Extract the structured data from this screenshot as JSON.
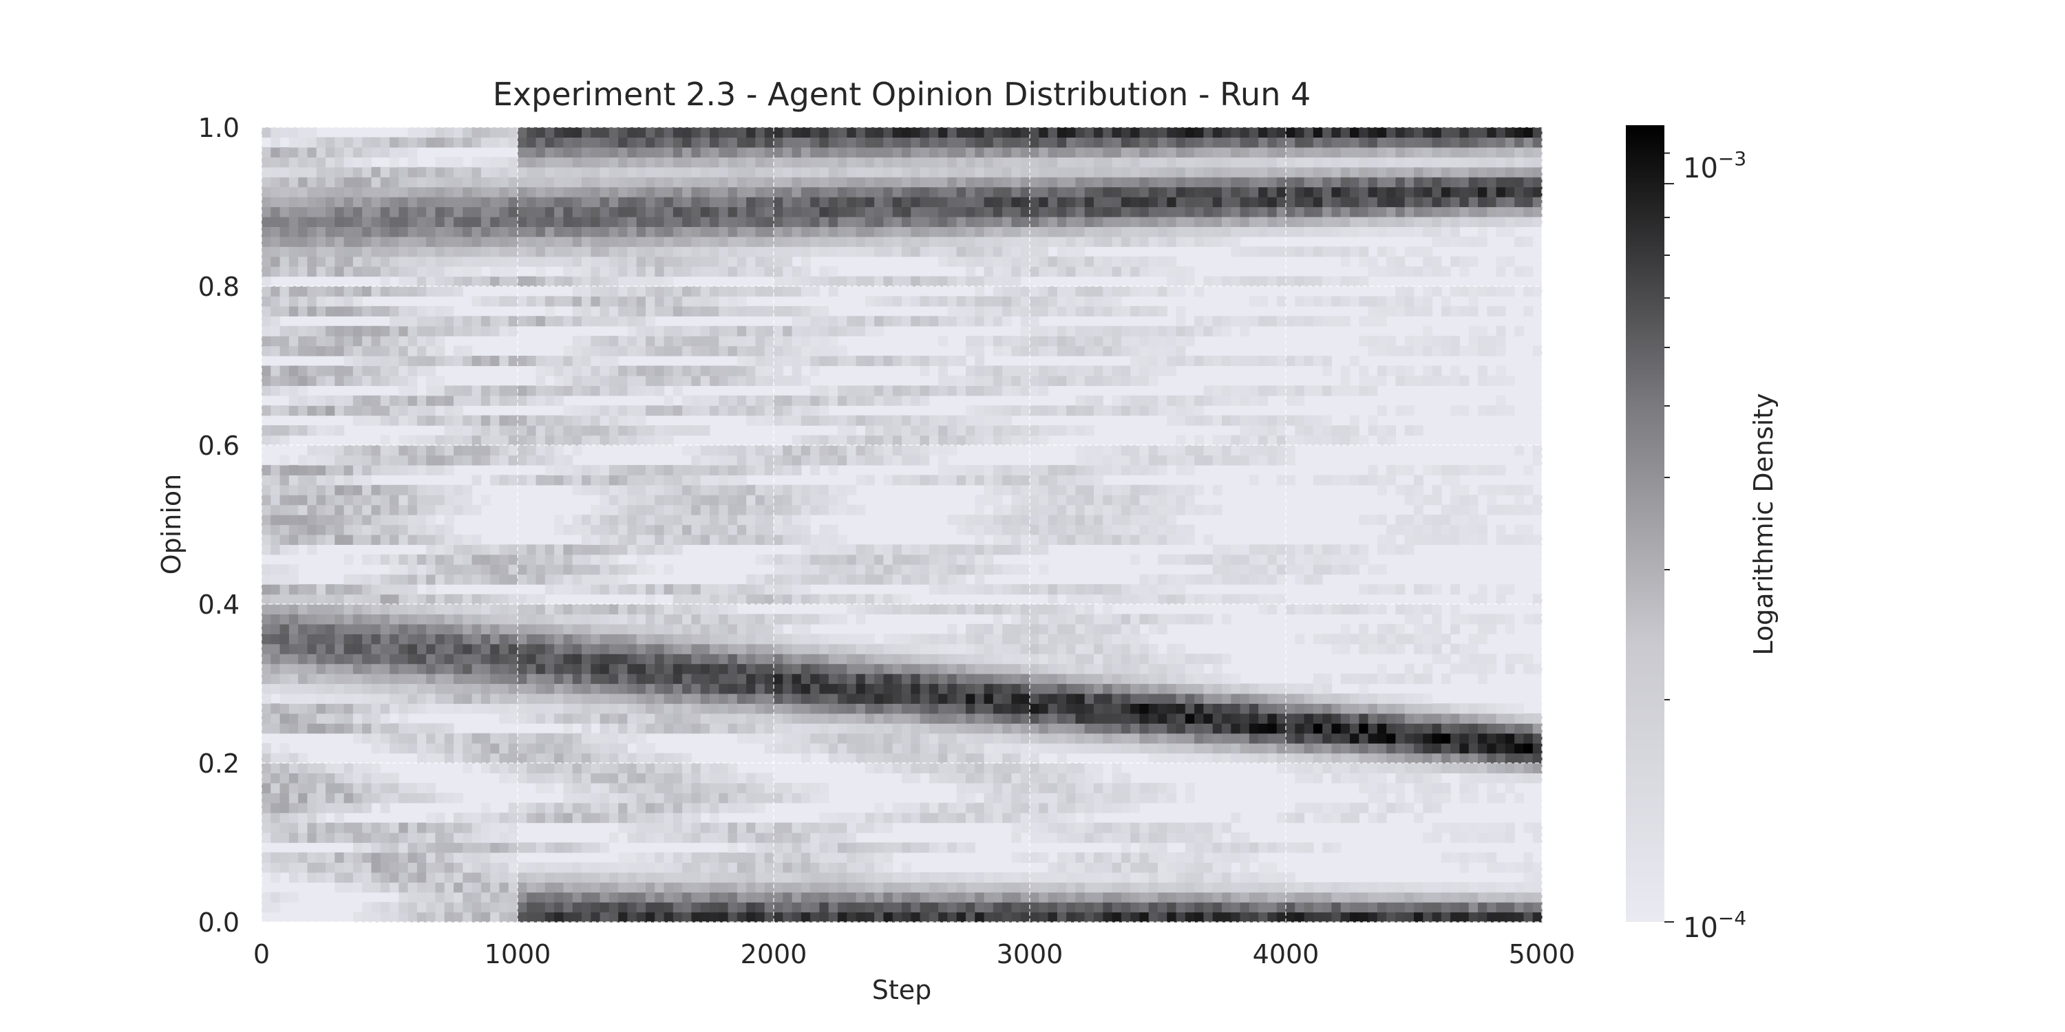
{
  "chart_data": {
    "type": "heatmap",
    "title": "Experiment 2.3 - Agent Opinion Distribution - Run 4",
    "xlabel": "Step",
    "ylabel": "Opinion",
    "xlim": [
      0,
      5000
    ],
    "ylim": [
      0,
      1
    ],
    "x_ticks": [
      0,
      1000,
      2000,
      3000,
      4000,
      5000
    ],
    "y_ticks": [
      0.0,
      0.2,
      0.4,
      0.6,
      0.8,
      1.0
    ],
    "x_tick_labels": [
      "0",
      "1000",
      "2000",
      "3000",
      "4000",
      "5000"
    ],
    "y_tick_labels": [
      "0.0",
      "0.2",
      "0.4",
      "0.6",
      "0.8",
      "1.0"
    ],
    "grid": true,
    "colormap": "greys",
    "colorbar": {
      "label": "Logarithmic Density",
      "scale": "log",
      "min": 0.0001,
      "max": 0.0012,
      "tick_values": [
        0.0001,
        0.001
      ],
      "tick_labels": [
        {
          "base": "10",
          "exponent": "−4"
        },
        {
          "base": "10",
          "exponent": "−3"
        }
      ]
    },
    "density_bands": [
      {
        "y_start": 0.36,
        "y_end": 0.22,
        "t_start": 0,
        "t_end": 5000,
        "peak_end": 0.00115,
        "peak_start": 0.0004
      },
      {
        "y_start": 0.88,
        "y_end": 0.92,
        "t_start": 0,
        "t_end": 5000,
        "peak_end": 0.0008,
        "peak_start": 0.0003
      },
      {
        "y_start": 0.0,
        "y_end": 0.0,
        "t_start": 1000,
        "t_end": 5000,
        "peak_end": 0.0009,
        "peak_start": 0.0007
      },
      {
        "y_start": 1.0,
        "y_end": 1.0,
        "t_start": 1000,
        "t_end": 5000,
        "peak_end": 0.001,
        "peak_start": 0.0006
      }
    ]
  },
  "colors": {
    "background": "#eaeaf2",
    "low": "#eaeaf2",
    "high": "#000000",
    "grid": "#ffffff",
    "text": "#262626"
  }
}
